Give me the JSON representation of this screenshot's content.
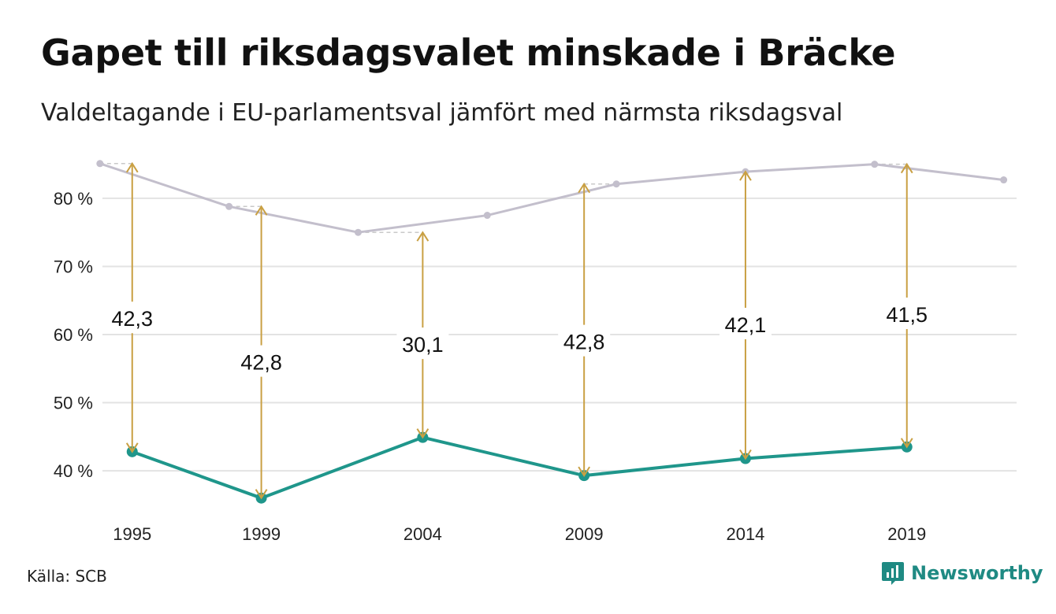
{
  "header": {
    "title": "Gapet till riksdagsvalet minskade i Bräcke",
    "subtitle": "Valdeltagande i EU-parlamentsval jämfört med närmsta riksdagsval"
  },
  "footer": {
    "source": "Källa: SCB",
    "brand": "Newsworthy",
    "brand_icon": "newsworthy-logo-icon"
  },
  "colors": {
    "eu": "#1f968b",
    "riksdag": "#c3bfcc",
    "arrow": "#c9a043",
    "grid": "#e3e3e3",
    "dash": "#c9c9c9"
  },
  "chart_data": {
    "type": "line",
    "title": "Gapet till riksdagsvalet minskade i Bräcke",
    "subtitle": "Valdeltagande i EU-parlamentsval jämfört med närmsta riksdagsval",
    "xlabel": "",
    "ylabel": "",
    "xlim": [
      1994.2,
      2022.4
    ],
    "ylim": [
      34,
      86
    ],
    "x_ticks": [
      {
        "value": 1995,
        "label": "1995"
      },
      {
        "value": 1999,
        "label": "1999"
      },
      {
        "value": 2004,
        "label": "2004"
      },
      {
        "value": 2009,
        "label": "2009"
      },
      {
        "value": 2014,
        "label": "2014"
      },
      {
        "value": 2019,
        "label": "2019"
      }
    ],
    "y_ticks": [
      {
        "value": 40,
        "label": "40 %"
      },
      {
        "value": 50,
        "label": "50 %"
      },
      {
        "value": 60,
        "label": "60 %"
      },
      {
        "value": 70,
        "label": "70 %"
      },
      {
        "value": 80,
        "label": "80 %"
      }
    ],
    "grid": true,
    "legend": "none",
    "series": [
      {
        "key": "riksdag",
        "x": [
          1994,
          1998,
          2002,
          2006,
          2010,
          2014,
          2018,
          2022
        ],
        "y": [
          85.1,
          78.8,
          75.0,
          77.5,
          82.1,
          83.9,
          85.0,
          82.7
        ]
      },
      {
        "key": "eu",
        "x": [
          1995,
          1999,
          2004,
          2009,
          2014,
          2019
        ],
        "y": [
          42.8,
          36.0,
          44.9,
          39.3,
          41.8,
          43.5
        ]
      }
    ],
    "gaps": [
      {
        "x": 1995,
        "from": 42.8,
        "to": 85.1,
        "label": "42,3",
        "label_y": 62.4
      },
      {
        "x": 1999,
        "from": 36.0,
        "to": 78.8,
        "label": "42,8",
        "label_y": 56.0
      },
      {
        "x": 2004,
        "from": 44.9,
        "to": 75.0,
        "label": "30,1",
        "label_y": 58.6
      },
      {
        "x": 2009,
        "from": 39.3,
        "to": 82.1,
        "label": "42,8",
        "label_y": 59.0
      },
      {
        "x": 2014,
        "from": 41.8,
        "to": 83.9,
        "label": "42,1",
        "label_y": 61.5
      },
      {
        "x": 2019,
        "from": 43.5,
        "to": 85.0,
        "label": "41,5",
        "label_y": 63.0
      }
    ]
  }
}
